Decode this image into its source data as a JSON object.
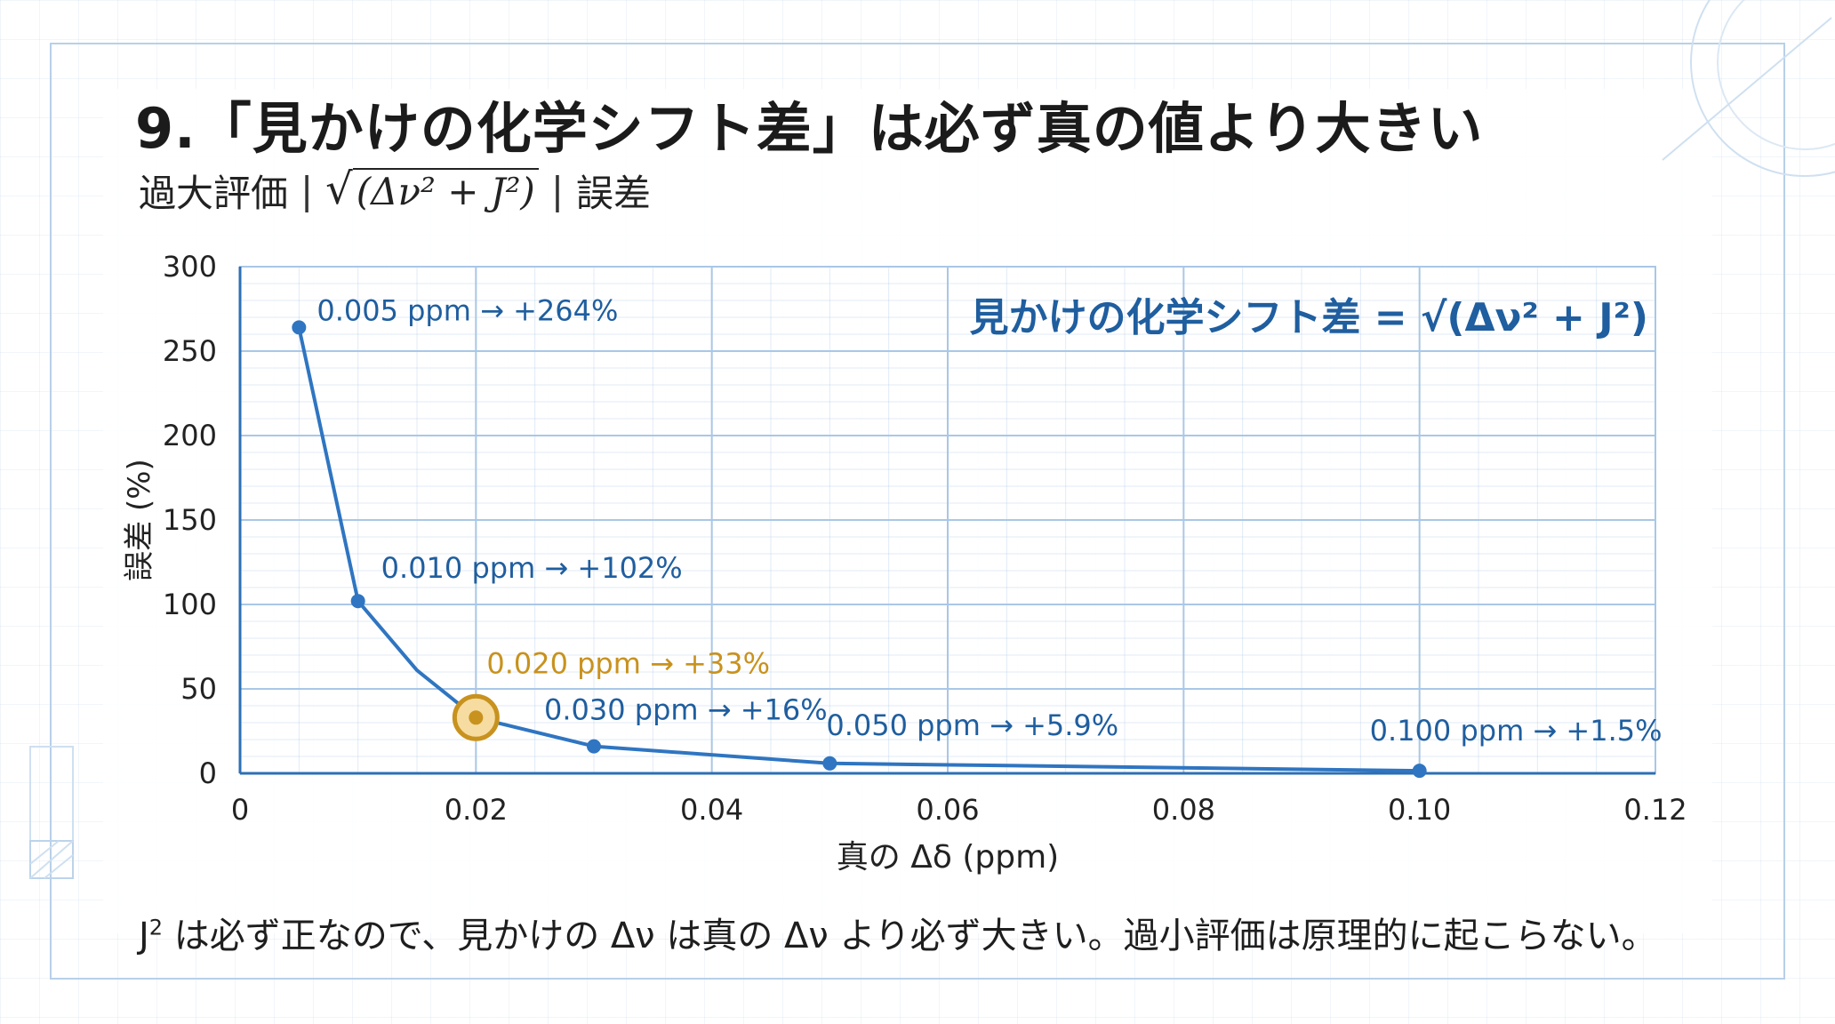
{
  "title": "9.「見かけの化学シフト差」は必ず真の値より大きい",
  "subtitle": {
    "part1": "過大評価",
    "sep": "|",
    "formula_inner": "(Δν² + J²)",
    "part3": "誤差"
  },
  "footer": {
    "j": "J",
    "sup": "2",
    "rest": " は必ず正なので、見かけの Δν は真の Δν より必ず大きい。過小評価は原理的に起こらない。"
  },
  "colors": {
    "line": "#2f75c1",
    "label": "#1f5e9f",
    "highlight": "#c8921e",
    "highlight_fill": "#f6dca0",
    "grid": "#a9c7e6",
    "axis": "#2e6fb5"
  },
  "chart_data": {
    "type": "line",
    "xlabel": "真の Δδ (ppm)",
    "ylabel": "誤差 (%)",
    "xlim": [
      0,
      0.12
    ],
    "ylim": [
      0,
      300
    ],
    "x_ticks": [
      "0",
      "0.02",
      "0.04",
      "0.06",
      "0.08",
      "0.10",
      "0.12"
    ],
    "y_ticks": [
      "0",
      "50",
      "100",
      "150",
      "200",
      "250",
      "300"
    ],
    "grid": true,
    "formula_annotation": "見かけの化学シフト差 = √(Δν² + J²)",
    "curve": [
      {
        "x": 0.005,
        "y": 264
      },
      {
        "x": 0.01,
        "y": 102
      },
      {
        "x": 0.015,
        "y": 61
      },
      {
        "x": 0.02,
        "y": 33
      },
      {
        "x": 0.03,
        "y": 16
      },
      {
        "x": 0.05,
        "y": 5.9
      },
      {
        "x": 0.1,
        "y": 1.5
      }
    ],
    "points": [
      {
        "x": 0.005,
        "y": 264,
        "label": "0.005 ppm → +264%",
        "highlight": false
      },
      {
        "x": 0.01,
        "y": 102,
        "label": "0.010 ppm → +102%",
        "highlight": false
      },
      {
        "x": 0.02,
        "y": 33,
        "label": "0.020 ppm → +33%",
        "highlight": true
      },
      {
        "x": 0.03,
        "y": 16,
        "label": "0.030 ppm → +16%",
        "highlight": false
      },
      {
        "x": 0.05,
        "y": 5.9,
        "label": "0.050 ppm → +5.9%",
        "highlight": false
      },
      {
        "x": 0.1,
        "y": 1.5,
        "label": "0.100 ppm → +1.5%",
        "highlight": false
      }
    ]
  }
}
